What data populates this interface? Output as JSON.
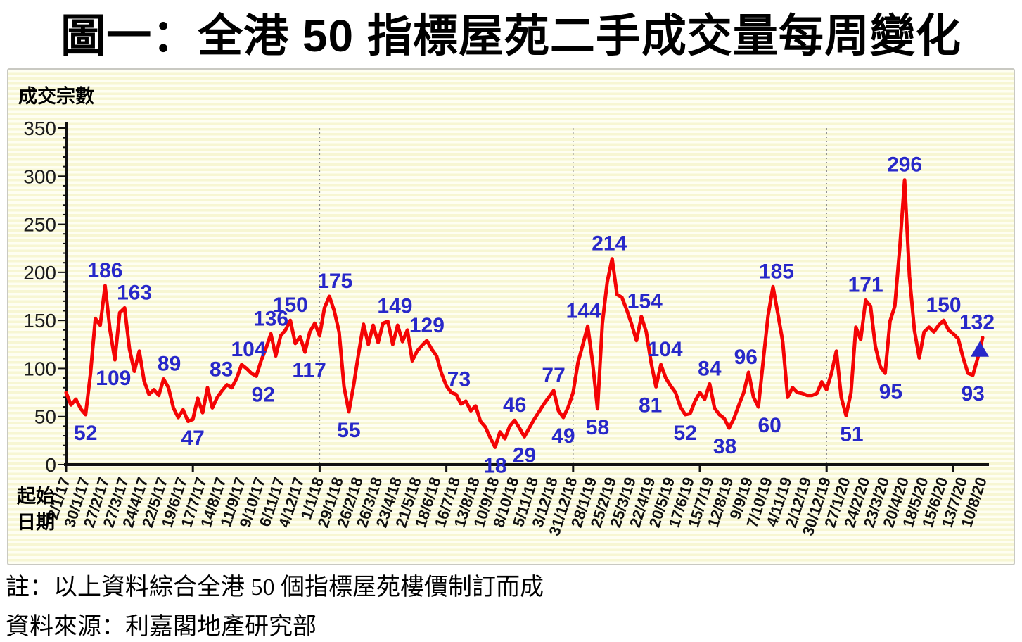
{
  "page": {
    "title": "圖一：全港 50 指標屋苑二手成交量每周變化",
    "note": "註：以上資料綜合全港 50 個指標屋苑樓價制訂而成",
    "source": "資料來源：利嘉閣地產研究部"
  },
  "chart_data": {
    "type": "line",
    "title": "圖一：全港 50 指標屋苑二手成交量每周變化",
    "ylabel": "成交宗數",
    "xlabel": "起始日期",
    "ylim": [
      0,
      350
    ],
    "y_tick_step": 50,
    "y_minor_tick_step": 10,
    "legend": "none",
    "grid": "striped background, dashed vertical lines at year starts",
    "colors": {
      "line": "#f40404",
      "label": "#2828c9",
      "axis": "#111111",
      "tick_text": "#1c1c1c",
      "divider": "#8a8a8a"
    },
    "x_label_interval_weeks": 4,
    "x_tick_labels": [
      "2/1/17",
      "30/1/17",
      "27/2/17",
      "27/3/17",
      "24/4/17",
      "22/5/17",
      "19/6/17",
      "17/7/17",
      "14/8/17",
      "11/9/17",
      "9/10/17",
      "6/11/17",
      "4/12/17",
      "1/1/18",
      "29/1/18",
      "26/2/18",
      "26/3/18",
      "23/4/18",
      "21/5/18",
      "18/6/18",
      "16/7/18",
      "13/8/18",
      "10/9/18",
      "8/10/18",
      "5/11/18",
      "3/12/18",
      "31/12/18",
      "28/1/19",
      "25/2/19",
      "25/3/19",
      "22/4/19",
      "20/5/19",
      "17/6/19",
      "15/7/19",
      "12/8/19",
      "9/9/19",
      "7/10/19",
      "4/11/19",
      "2/12/19",
      "30/12/19",
      "27/1/20",
      "24/2/20",
      "23/3/20",
      "20/4/20",
      "18/5/20",
      "15/6/20",
      "13/7/20",
      "10/8/20"
    ],
    "year_divider_weeks": [
      52,
      104,
      156
    ],
    "x_axis_tick_weeks": [
      0,
      26,
      52,
      78,
      104,
      130,
      156,
      182
    ],
    "weekly_values": [
      75,
      62,
      68,
      58,
      52,
      95,
      152,
      145,
      186,
      140,
      109,
      158,
      163,
      120,
      97,
      118,
      87,
      73,
      78,
      72,
      89,
      80,
      59,
      49,
      57,
      45,
      47,
      69,
      54,
      80,
      59,
      70,
      77,
      83,
      80,
      90,
      104,
      100,
      95,
      92,
      108,
      121,
      136,
      113,
      134,
      140,
      150,
      126,
      133,
      117,
      138,
      147,
      134,
      163,
      175,
      160,
      138,
      81,
      55,
      83,
      116,
      146,
      125,
      145,
      127,
      147,
      149,
      125,
      145,
      128,
      140,
      108,
      118,
      124,
      129,
      120,
      113,
      95,
      82,
      75,
      73,
      63,
      66,
      56,
      61,
      45,
      39,
      28,
      18,
      34,
      27,
      40,
      46,
      38,
      29,
      38,
      47,
      55,
      63,
      70,
      77,
      56,
      49,
      60,
      75,
      106,
      125,
      144,
      106,
      58,
      147,
      190,
      214,
      177,
      174,
      161,
      146,
      129,
      154,
      138,
      106,
      81,
      104,
      90,
      82,
      75,
      60,
      52,
      53,
      66,
      75,
      68,
      84,
      59,
      52,
      48,
      38,
      48,
      62,
      75,
      96,
      70,
      60,
      108,
      155,
      185,
      157,
      128,
      70,
      80,
      75,
      74,
      72,
      72,
      74,
      86,
      78,
      95,
      118,
      70,
      51,
      75,
      143,
      130,
      171,
      165,
      123,
      102,
      95,
      149,
      165,
      225,
      296,
      196,
      140,
      111,
      138,
      143,
      138,
      145,
      150,
      140,
      136,
      131,
      111,
      95,
      93,
      111,
      132
    ],
    "annotations": [
      {
        "week": 4,
        "value": 52,
        "pos": "below",
        "dx": 0
      },
      {
        "week": 8,
        "value": 186,
        "pos": "above",
        "dx": 0
      },
      {
        "week": 10,
        "value": 109,
        "pos": "below",
        "dx": -2
      },
      {
        "week": 12,
        "value": 163,
        "pos": "above",
        "dx": 14
      },
      {
        "week": 20,
        "value": 89,
        "pos": "above",
        "dx": 8
      },
      {
        "week": 26,
        "value": 47,
        "pos": "below",
        "dx": 0
      },
      {
        "week": 33,
        "value": 83,
        "pos": "above",
        "dx": -8
      },
      {
        "week": 36,
        "value": 104,
        "pos": "above",
        "dx": 10
      },
      {
        "week": 39,
        "value": 92,
        "pos": "below",
        "dx": 10
      },
      {
        "week": 42,
        "value": 136,
        "pos": "above",
        "dx": 0
      },
      {
        "week": 46,
        "value": 150,
        "pos": "above",
        "dx": 0
      },
      {
        "week": 49,
        "value": 117,
        "pos": "below",
        "dx": 6
      },
      {
        "week": 54,
        "value": 175,
        "pos": "above",
        "dx": 8
      },
      {
        "week": 58,
        "value": 55,
        "pos": "below",
        "dx": 0
      },
      {
        "week": 66,
        "value": 149,
        "pos": "above",
        "dx": 10
      },
      {
        "week": 74,
        "value": 129,
        "pos": "above",
        "dx": 0
      },
      {
        "week": 80,
        "value": 73,
        "pos": "above",
        "dx": 4
      },
      {
        "week": 88,
        "value": 18,
        "pos": "below",
        "dx": 0
      },
      {
        "week": 92,
        "value": 46,
        "pos": "above",
        "dx": 0
      },
      {
        "week": 94,
        "value": 29,
        "pos": "below",
        "dx": 0
      },
      {
        "week": 100,
        "value": 77,
        "pos": "above",
        "dx": 0
      },
      {
        "week": 102,
        "value": 49,
        "pos": "below",
        "dx": 0
      },
      {
        "week": 107,
        "value": 144,
        "pos": "above",
        "dx": -6
      },
      {
        "week": 109,
        "value": 58,
        "pos": "below",
        "dx": 0
      },
      {
        "week": 112,
        "value": 214,
        "pos": "above",
        "dx": -4
      },
      {
        "week": 118,
        "value": 154,
        "pos": "above",
        "dx": 5
      },
      {
        "week": 121,
        "value": 81,
        "pos": "below",
        "dx": -8
      },
      {
        "week": 122,
        "value": 104,
        "pos": "above",
        "dx": 6
      },
      {
        "week": 127,
        "value": 52,
        "pos": "below",
        "dx": 0
      },
      {
        "week": 132,
        "value": 84,
        "pos": "above",
        "dx": 0
      },
      {
        "week": 136,
        "value": 38,
        "pos": "below",
        "dx": -6
      },
      {
        "week": 140,
        "value": 96,
        "pos": "above",
        "dx": -4
      },
      {
        "week": 142,
        "value": 60,
        "pos": "below",
        "dx": 16
      },
      {
        "week": 145,
        "value": 185,
        "pos": "above",
        "dx": 5
      },
      {
        "week": 160,
        "value": 51,
        "pos": "below",
        "dx": 8
      },
      {
        "week": 164,
        "value": 171,
        "pos": "above",
        "dx": 0
      },
      {
        "week": 168,
        "value": 95,
        "pos": "below",
        "dx": 8
      },
      {
        "week": 172,
        "value": 296,
        "pos": "above",
        "dx": 0
      },
      {
        "week": 180,
        "value": 150,
        "pos": "above",
        "dx": 0
      },
      {
        "week": 186,
        "value": 93,
        "pos": "below",
        "dx": 0
      },
      {
        "week": 188,
        "value": 132,
        "pos": "above",
        "dx": -8
      }
    ],
    "last_point_marker": "blue-up-triangle"
  }
}
